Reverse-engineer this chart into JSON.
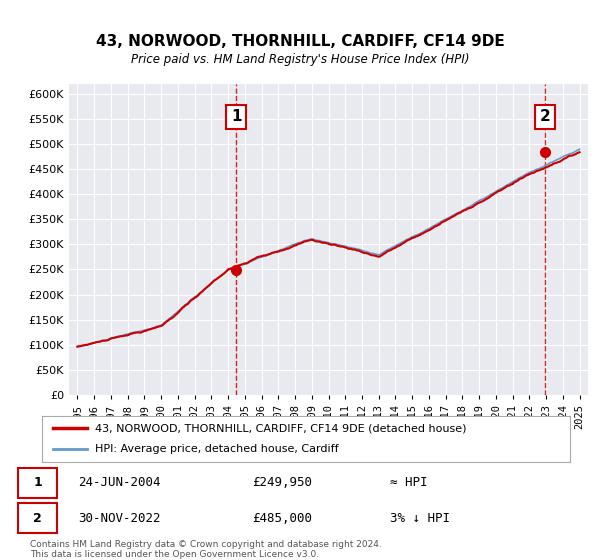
{
  "title": "43, NORWOOD, THORNHILL, CARDIFF, CF14 9DE",
  "subtitle": "Price paid vs. HM Land Registry's House Price Index (HPI)",
  "legend_line1": "43, NORWOOD, THORNHILL, CARDIFF, CF14 9DE (detached house)",
  "legend_line2": "HPI: Average price, detached house, Cardiff",
  "annotation1_label": "1",
  "annotation1_date": "24-JUN-2004",
  "annotation1_price": "£249,950",
  "annotation1_hpi": "≈ HPI",
  "annotation2_label": "2",
  "annotation2_date": "30-NOV-2022",
  "annotation2_price": "£485,000",
  "annotation2_hpi": "3% ↓ HPI",
  "footer1": "Contains HM Land Registry data © Crown copyright and database right 2024.",
  "footer2": "This data is licensed under the Open Government Licence v3.0.",
  "hpi_color": "#6699cc",
  "price_color": "#cc0000",
  "plot_bg": "#e8eaf0",
  "grid_color": "#ffffff",
  "marker1_x": 2004.48,
  "marker1_y": 249950,
  "marker2_x": 2022.92,
  "marker2_y": 485000,
  "vline1_x": 2004.48,
  "vline2_x": 2022.92,
  "ylim": [
    0,
    620000
  ],
  "xlim": [
    1994.5,
    2025.5
  ]
}
